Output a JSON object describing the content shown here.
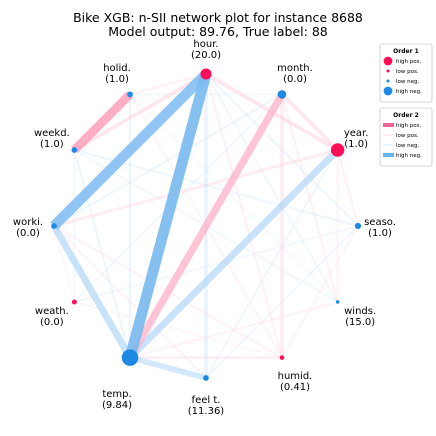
{
  "chart_data": {
    "type": "network",
    "title": "Bike XGB: n-SII network plot for instance 8688",
    "subtitle": "Model output: 89.76, True label: 88",
    "colors": {
      "pos": "#ff0d57",
      "neg": "#1e88e5",
      "pos_light": "#ffb6cb",
      "neg_light": "#a9d3f5"
    },
    "nodes": [
      {
        "id": "hour",
        "label": "hour.",
        "value": "(20.0)",
        "strength": 0.5,
        "sign": "pos"
      },
      {
        "id": "month",
        "label": "month.",
        "value": "(0.0)",
        "strength": 0.35,
        "sign": "neg"
      },
      {
        "id": "year",
        "label": "year.",
        "value": "(1.0)",
        "strength": 0.65,
        "sign": "pos"
      },
      {
        "id": "season",
        "label": "seaso.",
        "value": "(1.0)",
        "strength": 0.2,
        "sign": "neg"
      },
      {
        "id": "windspeed",
        "label": "winds.",
        "value": "(15.0)",
        "strength": 0.03,
        "sign": "neg"
      },
      {
        "id": "humidity",
        "label": "humid.",
        "value": "(0.41)",
        "strength": 0.1,
        "sign": "pos"
      },
      {
        "id": "feeltemp",
        "label": "feel t.",
        "value": "(11.36)",
        "strength": 0.17,
        "sign": "neg"
      },
      {
        "id": "temp",
        "label": "temp.",
        "value": "(9.84)",
        "strength": 0.85,
        "sign": "neg"
      },
      {
        "id": "weather",
        "label": "weath.",
        "value": "(0.0)",
        "strength": 0.12,
        "sign": "pos"
      },
      {
        "id": "workingday",
        "label": "worki.",
        "value": "(0.0)",
        "strength": 0.17,
        "sign": "neg"
      },
      {
        "id": "weekday",
        "label": "weekd.",
        "value": "(1.0)",
        "strength": 0.17,
        "sign": "neg"
      },
      {
        "id": "holiday",
        "label": "holid.",
        "value": "(1.0)",
        "strength": 0.17,
        "sign": "neg"
      }
    ],
    "edges": [
      {
        "source": "hour",
        "target": "temp",
        "weight": 1.0,
        "sign": "neg"
      },
      {
        "source": "hour",
        "target": "workingday",
        "weight": 0.95,
        "sign": "neg"
      },
      {
        "source": "holiday",
        "target": "weekday",
        "weight": 0.8,
        "sign": "pos"
      },
      {
        "source": "month",
        "target": "temp",
        "weight": 0.65,
        "sign": "pos"
      },
      {
        "source": "year",
        "target": "temp",
        "weight": 0.6,
        "sign": "neg"
      },
      {
        "source": "workingday",
        "target": "temp",
        "weight": 0.6,
        "sign": "neg"
      },
      {
        "source": "temp",
        "target": "feeltemp",
        "weight": 0.5,
        "sign": "neg"
      },
      {
        "source": "hour",
        "target": "weekday",
        "weight": 0.3,
        "sign": "pos"
      },
      {
        "source": "hour",
        "target": "year",
        "weight": 0.3,
        "sign": "pos"
      },
      {
        "source": "holiday",
        "target": "hour",
        "weight": 0.15,
        "sign": "pos"
      },
      {
        "source": "month",
        "target": "year",
        "weight": 0.3,
        "sign": "pos"
      },
      {
        "source": "year",
        "target": "season",
        "weight": 0.15,
        "sign": "pos"
      },
      {
        "source": "month",
        "target": "humidity",
        "weight": 0.25,
        "sign": "pos"
      },
      {
        "source": "hour",
        "target": "feeltemp",
        "weight": 0.25,
        "sign": "neg"
      },
      {
        "source": "workingday",
        "target": "year",
        "weight": 0.22,
        "sign": "pos"
      },
      {
        "source": "hour",
        "target": "humidity",
        "weight": 0.15,
        "sign": "pos"
      },
      {
        "source": "month",
        "target": "windspeed",
        "weight": 0.15,
        "sign": "pos"
      },
      {
        "source": "temp",
        "target": "humidity",
        "weight": 0.2,
        "sign": "pos"
      },
      {
        "source": "hour",
        "target": "season",
        "weight": 0.15,
        "sign": "neg"
      },
      {
        "source": "weekday",
        "target": "season",
        "weight": 0.15,
        "sign": "neg"
      },
      {
        "source": "month",
        "target": "workingday",
        "weight": 0.15,
        "sign": "neg"
      },
      {
        "source": "holiday",
        "target": "temp",
        "weight": 0.18,
        "sign": "neg"
      },
      {
        "source": "weekday",
        "target": "temp",
        "weight": 0.15,
        "sign": "neg"
      },
      {
        "source": "season",
        "target": "feeltemp",
        "weight": 0.12,
        "sign": "neg"
      },
      {
        "source": "workingday",
        "target": "humidity",
        "weight": 0.12,
        "sign": "pos"
      },
      {
        "source": "weekday",
        "target": "windspeed",
        "weight": 0.1,
        "sign": "neg"
      },
      {
        "source": "holiday",
        "target": "humidity",
        "weight": 0.1,
        "sign": "pos"
      },
      {
        "source": "weather",
        "target": "season",
        "weight": 0.1,
        "sign": "neg"
      },
      {
        "source": "weather",
        "target": "month",
        "weight": 0.1,
        "sign": "neg"
      },
      {
        "source": "temp",
        "target": "windspeed",
        "weight": 0.12,
        "sign": "pos"
      },
      {
        "source": "hour",
        "target": "windspeed",
        "weight": 0.1,
        "sign": "neg"
      },
      {
        "source": "year",
        "target": "windspeed",
        "weight": 0.12,
        "sign": "pos"
      },
      {
        "source": "feeltemp",
        "target": "year",
        "weight": 0.12,
        "sign": "neg"
      },
      {
        "source": "holiday",
        "target": "month",
        "weight": 0.1,
        "sign": "neg"
      },
      {
        "source": "weather",
        "target": "weekday",
        "weight": 0.1,
        "sign": "neg"
      },
      {
        "source": "workingday",
        "target": "feeltemp",
        "weight": 0.12,
        "sign": "pos"
      },
      {
        "source": "workingday",
        "target": "weather",
        "weight": 0.08,
        "sign": "pos"
      },
      {
        "source": "holiday",
        "target": "windspeed",
        "weight": 0.08,
        "sign": "neg"
      },
      {
        "source": "humidity",
        "target": "weather",
        "weight": 0.08,
        "sign": "pos"
      },
      {
        "source": "season",
        "target": "humidity",
        "weight": 0.1,
        "sign": "pos"
      }
    ],
    "legend": {
      "placement": "top-right",
      "order1": {
        "title": "Order 1",
        "entries": [
          {
            "label": "high pos.",
            "sign": "pos",
            "strength": 1.0
          },
          {
            "label": "low pos.",
            "sign": "pos",
            "strength": 0.2
          },
          {
            "label": "low neg.",
            "sign": "neg",
            "strength": 0.2
          },
          {
            "label": "high neg.",
            "sign": "neg",
            "strength": 1.0
          }
        ]
      },
      "order2": {
        "title": "Order 2",
        "entries": [
          {
            "label": "high pos.",
            "sign": "pos",
            "strength": 1.0
          },
          {
            "label": "low pos.",
            "sign": "pos",
            "strength": 0.15
          },
          {
            "label": "low neg.",
            "sign": "neg",
            "strength": 0.15
          },
          {
            "label": "high neg.",
            "sign": "neg",
            "strength": 1.0
          }
        ]
      }
    }
  }
}
